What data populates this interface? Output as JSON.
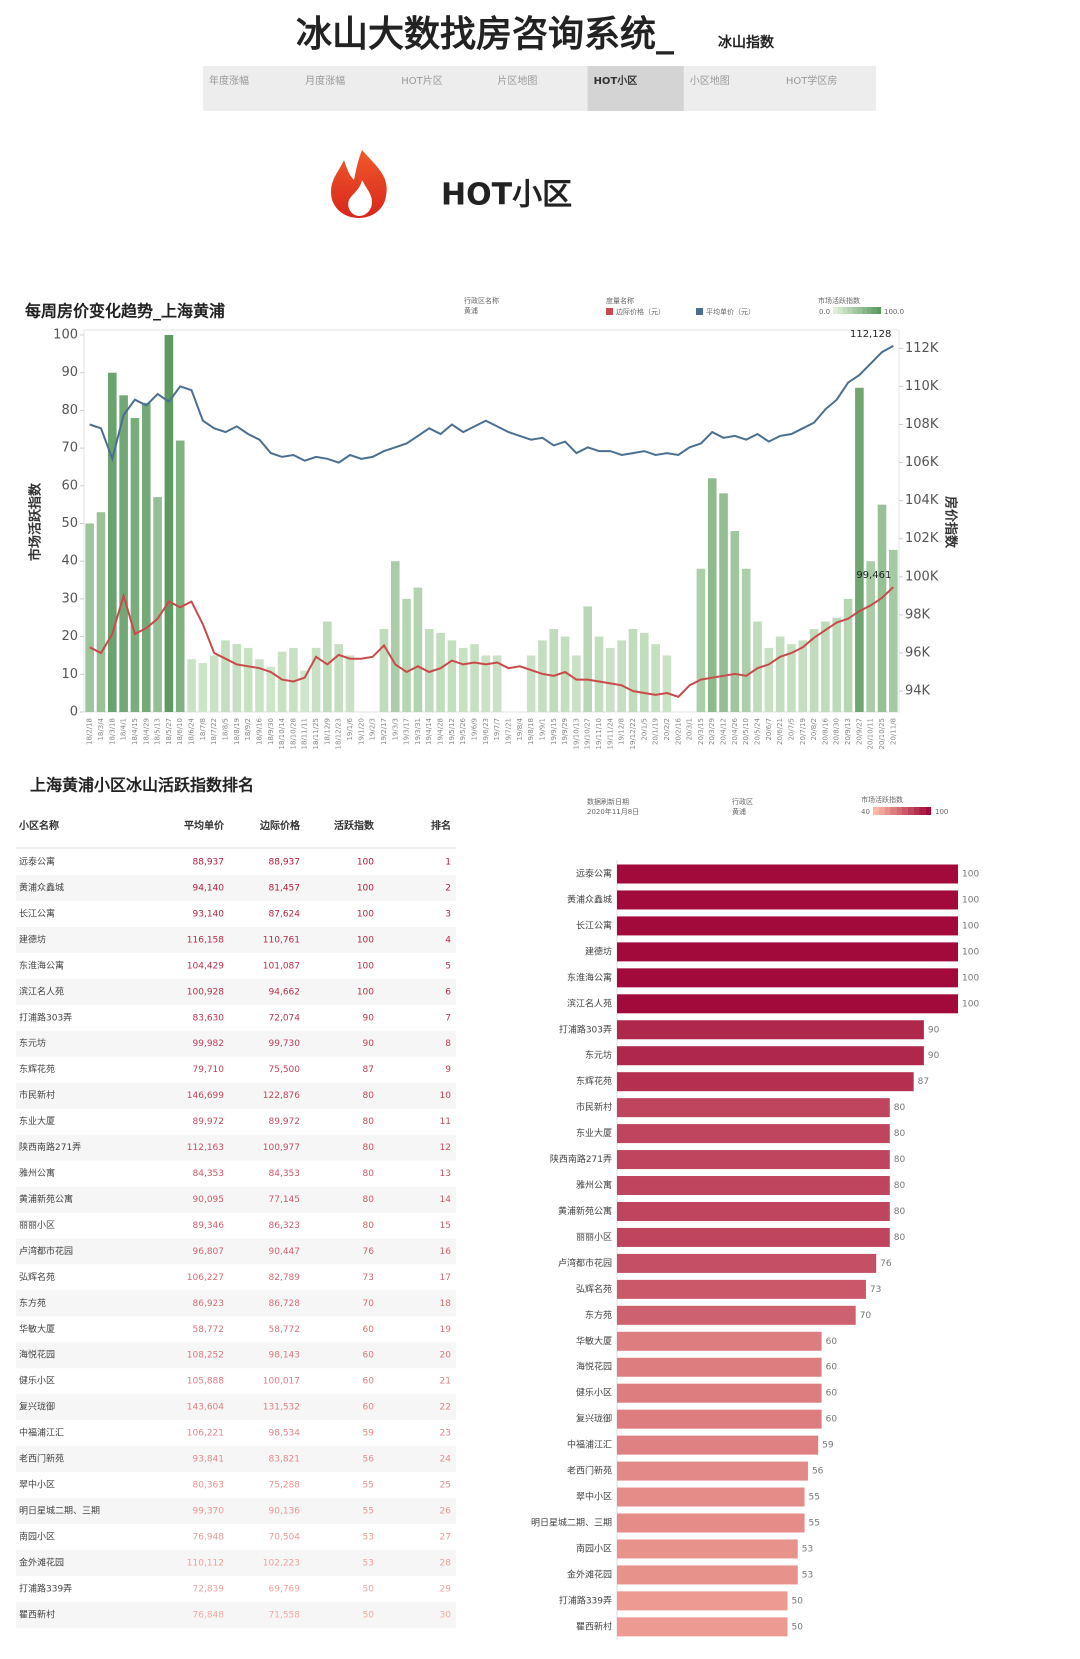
{
  "header": {
    "title": "冰山大数找房咨询系统_",
    "subtitle": "冰山指数",
    "tabs": [
      "年度涨幅",
      "月度涨幅",
      "HOT片区",
      "片区地图",
      "HOT小区",
      "小区地图",
      "HOT学区房"
    ],
    "active_tab": 4,
    "section_title": "HOT小区"
  },
  "chart_data": [
    {
      "type": "combo",
      "title": "每周房价变化趋势_上海黄浦",
      "filter_label": "行政区名称",
      "filter_value": "黄浦",
      "legend_title": "度量名称",
      "y_label": "市场活跃指数",
      "y2_label": "房价指数",
      "x": [
        "18/2/18",
        "18/3/4",
        "18/3/18",
        "18/4/1",
        "18/4/15",
        "18/4/29",
        "18/5/13",
        "18/5/27",
        "18/6/10",
        "18/6/24",
        "18/7/8",
        "18/7/22",
        "18/8/5",
        "18/8/19",
        "18/9/2",
        "18/9/16",
        "18/9/30",
        "18/10/14",
        "18/10/28",
        "18/11/11",
        "18/11/25",
        "18/12/9",
        "18/12/23",
        "19/1/6",
        "19/1/20",
        "19/2/3",
        "19/2/17",
        "19/3/3",
        "19/3/17",
        "19/3/31",
        "19/4/14",
        "19/4/28",
        "19/5/12",
        "19/5/26",
        "19/6/9",
        "19/6/23",
        "19/7/7",
        "19/7/21",
        "19/8/4",
        "19/8/18",
        "19/9/1",
        "19/9/15",
        "19/9/29",
        "19/10/13",
        "19/10/27",
        "19/11/10",
        "19/11/24",
        "19/12/8",
        "19/12/22",
        "20/1/5",
        "20/1/19",
        "20/2/2",
        "20/2/16",
        "20/3/1",
        "20/3/15",
        "20/3/29",
        "20/4/12",
        "20/4/26",
        "20/5/10",
        "20/5/24",
        "20/6/7",
        "20/6/21",
        "20/7/5",
        "20/7/19",
        "20/8/2",
        "20/8/16",
        "20/8/30",
        "20/9/13",
        "20/9/27",
        "20/10/11",
        "20/10/25",
        "20/11/8"
      ],
      "ylim": [
        0,
        100
      ],
      "yticks": [
        0,
        10,
        20,
        30,
        40,
        50,
        60,
        70,
        80,
        90,
        100
      ],
      "y2lim": [
        92900,
        112700
      ],
      "y2ticks": [
        {
          "value": 94000,
          "label": "94K"
        },
        {
          "value": 96000,
          "label": "96K"
        },
        {
          "value": 98000,
          "label": "98K"
        },
        {
          "value": 100000,
          "label": "100K"
        },
        {
          "value": 102000,
          "label": "102K"
        },
        {
          "value": 104000,
          "label": "104K"
        },
        {
          "value": 106000,
          "label": "106K"
        },
        {
          "value": 108000,
          "label": "108K"
        },
        {
          "value": 110000,
          "label": "110K"
        },
        {
          "value": 112000,
          "label": "112K"
        }
      ],
      "color_legend": {
        "range": [
          {
            "value": 0,
            "label": "0.0"
          },
          {
            "value": 100,
            "label": "100.0"
          }
        ],
        "colors": [
          "#dcefd6",
          "#5e9a62"
        ]
      },
      "series": [
        {
          "name": "市场活跃指数",
          "kind": "bar",
          "values": [
            50,
            53,
            90,
            84,
            78,
            82,
            57,
            100,
            72,
            14,
            13,
            15,
            19,
            18,
            17,
            14,
            12,
            16,
            17,
            11,
            17,
            24,
            18,
            15,
            null,
            null,
            22,
            40,
            30,
            33,
            22,
            21,
            19,
            17,
            18,
            15,
            15,
            null,
            null,
            15,
            19,
            22,
            20,
            15,
            28,
            20,
            17,
            19,
            22,
            21,
            18,
            15,
            null,
            null,
            38,
            62,
            58,
            48,
            38,
            24,
            17,
            20,
            18,
            19,
            22,
            24,
            25,
            30,
            86,
            40,
            55,
            43
          ]
        },
        {
          "name": "边际价格（元）",
          "kind": "line",
          "axis": "y2",
          "color": "#c94a4a",
          "values": [
            96300,
            96000,
            97000,
            99000,
            97000,
            97300,
            97800,
            98700,
            98400,
            98700,
            97500,
            96000,
            95700,
            95400,
            95300,
            95200,
            95000,
            94600,
            94500,
            94700,
            95800,
            95400,
            95900,
            95700,
            95700,
            95800,
            96400,
            95400,
            95000,
            95300,
            95000,
            95200,
            95600,
            95400,
            95500,
            95400,
            95500,
            95200,
            95300,
            95100,
            94900,
            94800,
            95000,
            94600,
            94600,
            94500,
            94400,
            94300,
            94000,
            93900,
            93800,
            93900,
            93700,
            94300,
            94600,
            94700,
            94800,
            94900,
            94800,
            95200,
            95400,
            95800,
            96000,
            96300,
            96800,
            97200,
            97600,
            97800,
            98200,
            98500,
            98900,
            99461
          ],
          "value_labels": [
            null,
            null,
            null,
            null,
            null,
            null,
            null,
            null,
            null,
            null,
            null,
            null,
            null,
            null,
            null,
            null,
            null,
            null,
            null,
            null,
            null,
            null,
            null,
            null,
            null,
            null,
            null,
            null,
            null,
            null,
            null,
            null,
            null,
            null,
            null,
            null,
            null,
            null,
            null,
            null,
            null,
            null,
            null,
            null,
            null,
            null,
            null,
            null,
            null,
            null,
            null,
            null,
            null,
            null,
            null,
            null,
            null,
            null,
            null,
            null,
            null,
            null,
            null,
            null,
            null,
            null,
            null,
            null,
            null,
            null,
            null,
            "99,461"
          ]
        },
        {
          "name": "平均单价（元）",
          "kind": "line",
          "axis": "y2",
          "color": "#4a6f91",
          "values": [
            108000,
            107800,
            106200,
            108500,
            109300,
            109000,
            109600,
            109200,
            110000,
            109800,
            108200,
            107800,
            107600,
            107900,
            107500,
            107200,
            106500,
            106300,
            106400,
            106100,
            106300,
            106200,
            106000,
            106400,
            106200,
            106300,
            106600,
            106800,
            107000,
            107400,
            107800,
            107500,
            108000,
            107600,
            107900,
            108200,
            107900,
            107600,
            107400,
            107200,
            107300,
            106900,
            107100,
            106500,
            106800,
            106600,
            106600,
            106400,
            106500,
            106600,
            106400,
            106500,
            106400,
            106800,
            107000,
            107600,
            107300,
            107400,
            107200,
            107500,
            107100,
            107400,
            107500,
            107800,
            108100,
            108800,
            109300,
            110200,
            110600,
            111200,
            111800,
            112128
          ],
          "value_labels": [
            null,
            null,
            null,
            null,
            null,
            null,
            null,
            null,
            null,
            null,
            null,
            null,
            null,
            null,
            null,
            null,
            null,
            null,
            null,
            null,
            null,
            null,
            null,
            null,
            null,
            null,
            null,
            null,
            null,
            null,
            null,
            null,
            null,
            null,
            null,
            null,
            null,
            null,
            null,
            null,
            null,
            null,
            null,
            null,
            null,
            null,
            null,
            null,
            null,
            null,
            null,
            null,
            null,
            null,
            null,
            null,
            null,
            null,
            null,
            null,
            null,
            null,
            null,
            null,
            null,
            null,
            null,
            null,
            null,
            null,
            null,
            "112,128"
          ]
        }
      ]
    },
    {
      "type": "bar",
      "refresh_label": "数据刷新日期",
      "refresh_date": "2020年11月8日",
      "filter_label": "行政区",
      "filter_value": "黄浦",
      "legend_title": "市场活跃指数",
      "color_legend": {
        "range": [
          40,
          100
        ],
        "colors": [
          "#fbb7a3",
          "#a10a3a"
        ]
      },
      "categories": [
        "远泰公寓",
        "黄浦众鑫城",
        "长江公寓",
        "建德坊",
        "东淮海公寓",
        "滨江名人苑",
        "打浦路303弄",
        "东元坊",
        "东辉花苑",
        "市民新村",
        "东业大厦",
        "陕西南路271弄",
        "雅州公寓",
        "黄浦新苑公寓",
        "丽丽小区",
        "卢湾都市花园",
        "弘辉名苑",
        "东方苑",
        "华敏大厦",
        "海悦花园",
        "健乐小区",
        "复兴珑御",
        "中福浦江汇",
        "老西门新苑",
        "翠中小区",
        "明日星城二期、三期",
        "南园小区",
        "金外滩花园",
        "打浦路339弄",
        "瞿西新村"
      ],
      "values": [
        100,
        100,
        100,
        100,
        100,
        100,
        90,
        90,
        87,
        80,
        80,
        80,
        80,
        80,
        80,
        76,
        73,
        70,
        60,
        60,
        60,
        60,
        59,
        56,
        55,
        55,
        53,
        53,
        50,
        50
      ]
    }
  ],
  "table": {
    "title": "上海黄浦小区冰山活跃指数排名",
    "columns": [
      "小区名称",
      "平均单价",
      "边际价格",
      "活跃指数",
      "排名"
    ],
    "rows": [
      [
        "远泰公寓",
        "88,937",
        "88,937",
        "100",
        "1"
      ],
      [
        "黄浦众鑫城",
        "94,140",
        "81,457",
        "100",
        "2"
      ],
      [
        "长江公寓",
        "93,140",
        "87,624",
        "100",
        "3"
      ],
      [
        "建德坊",
        "116,158",
        "110,761",
        "100",
        "4"
      ],
      [
        "东淮海公寓",
        "104,429",
        "101,087",
        "100",
        "5"
      ],
      [
        "滨江名人苑",
        "100,928",
        "94,662",
        "100",
        "6"
      ],
      [
        "打浦路303弄",
        "83,630",
        "72,074",
        "90",
        "7"
      ],
      [
        "东元坊",
        "99,982",
        "99,730",
        "90",
        "8"
      ],
      [
        "东辉花苑",
        "79,710",
        "75,500",
        "87",
        "9"
      ],
      [
        "市民新村",
        "146,699",
        "122,876",
        "80",
        "10"
      ],
      [
        "东业大厦",
        "89,972",
        "89,972",
        "80",
        "11"
      ],
      [
        "陕西南路271弄",
        "112,163",
        "100,977",
        "80",
        "12"
      ],
      [
        "雅州公寓",
        "84,353",
        "84,353",
        "80",
        "13"
      ],
      [
        "黄浦新苑公寓",
        "90,095",
        "77,145",
        "80",
        "14"
      ],
      [
        "丽丽小区",
        "89,346",
        "86,323",
        "80",
        "15"
      ],
      [
        "卢湾都市花园",
        "96,807",
        "90,447",
        "76",
        "16"
      ],
      [
        "弘辉名苑",
        "106,227",
        "82,789",
        "73",
        "17"
      ],
      [
        "东方苑",
        "86,923",
        "86,728",
        "70",
        "18"
      ],
      [
        "华敏大厦",
        "58,772",
        "58,772",
        "60",
        "19"
      ],
      [
        "海悦花园",
        "108,252",
        "98,143",
        "60",
        "20"
      ],
      [
        "健乐小区",
        "105,888",
        "100,017",
        "60",
        "21"
      ],
      [
        "复兴珑御",
        "143,604",
        "131,532",
        "60",
        "22"
      ],
      [
        "中福浦江汇",
        "106,221",
        "98,534",
        "59",
        "23"
      ],
      [
        "老西门新苑",
        "93,841",
        "83,821",
        "56",
        "24"
      ],
      [
        "翠中小区",
        "80,363",
        "75,288",
        "55",
        "25"
      ],
      [
        "明日星城二期、三期",
        "99,370",
        "90,136",
        "55",
        "26"
      ],
      [
        "南园小区",
        "76,948",
        "70,504",
        "53",
        "27"
      ],
      [
        "金外滩花园",
        "110,112",
        "102,223",
        "53",
        "28"
      ],
      [
        "打浦路339弄",
        "72,839",
        "69,769",
        "50",
        "29"
      ],
      [
        "瞿西新村",
        "76,848",
        "71,558",
        "50",
        "30"
      ]
    ]
  }
}
